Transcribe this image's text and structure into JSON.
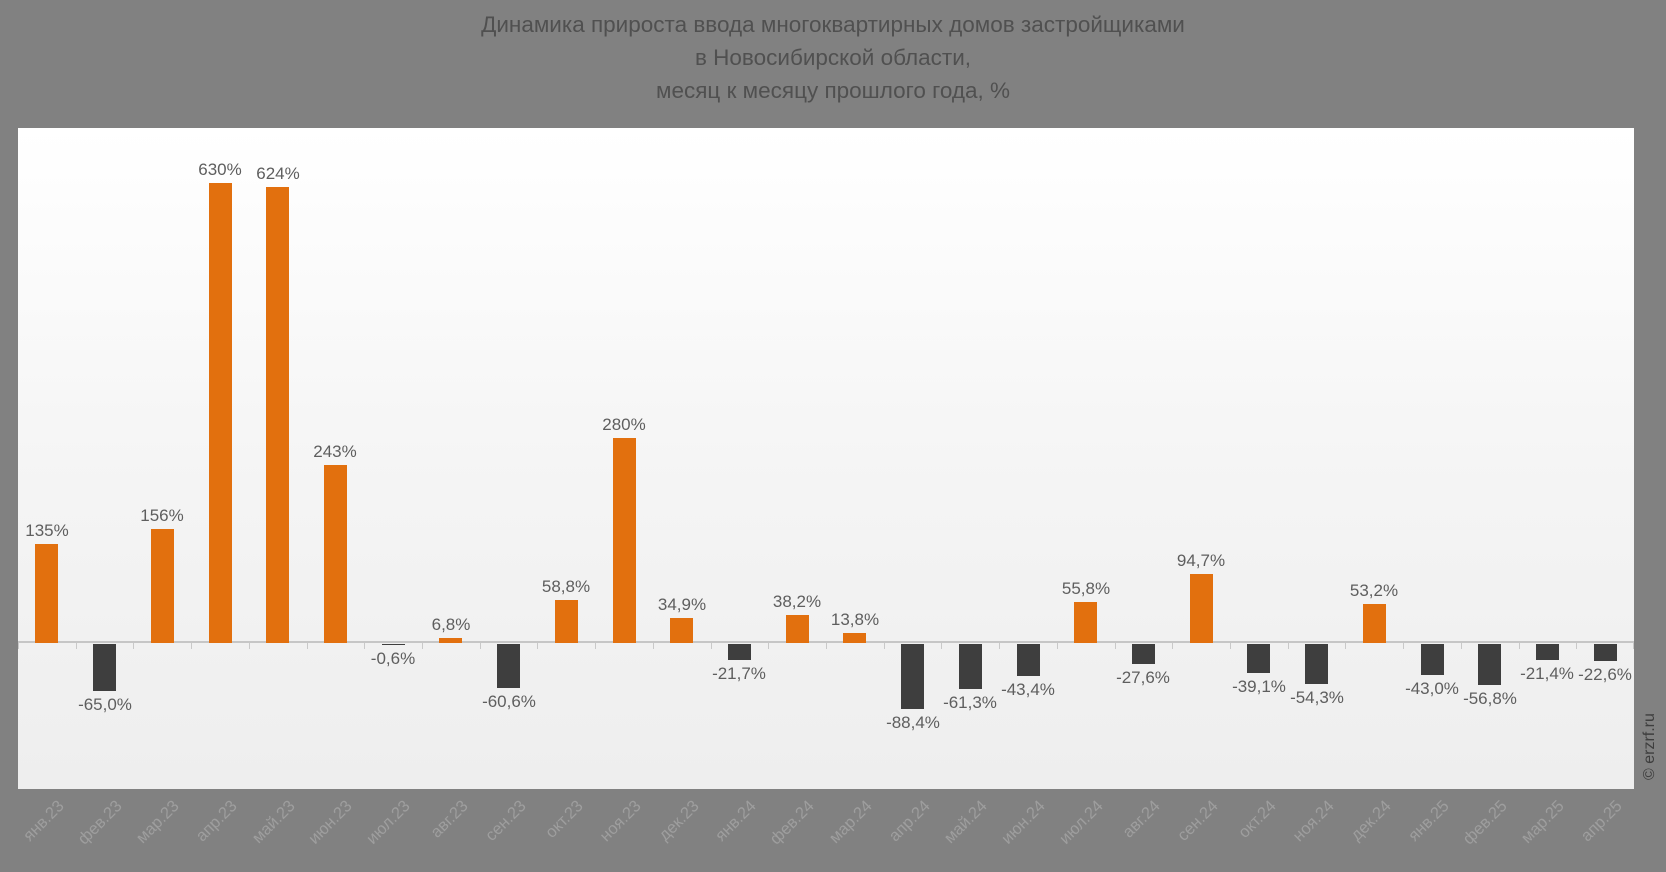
{
  "title": "Динамика прироста ввода многоквартирных домов застройщиками\nв Новосибирской области,\nмесяц к месяцу прошлого года, %",
  "watermark": "© erzrf.ru",
  "colors": {
    "positive_bar": "#e2700e",
    "negative_bar": "#3e3e3e",
    "background": "#818181",
    "plot_background_top": "#ffffff",
    "plot_background_bottom": "#eeeeee",
    "title_text": "#505050",
    "value_label_text": "#5e5e5e",
    "axis_label_text": "#9e9e9e",
    "axis_line": "#c6c6c6",
    "watermark_text": "#3e3e3e"
  },
  "chart_data": {
    "type": "bar",
    "title": "Динамика прироста ввода многоквартирных домов застройщиками в Новосибирской области, месяц к месяцу прошлого года, %",
    "xlabel": "",
    "ylabel": "%",
    "ylim": [
      -200,
      705
    ],
    "grid": false,
    "legend": false,
    "categories": [
      "янв.23",
      "фев.23",
      "мар.23",
      "апр.23",
      "май.23",
      "июн.23",
      "июл.23",
      "авг.23",
      "сен.23",
      "окт.23",
      "ноя.23",
      "дек.23",
      "янв.24",
      "фев.24",
      "мар.24",
      "апр.24",
      "май.24",
      "июн.24",
      "июл.24",
      "авг.24",
      "сен.24",
      "окт.24",
      "ноя.24",
      "дек.24",
      "янв.25",
      "фев.25",
      "мар.25",
      "апр.25"
    ],
    "values": [
      135,
      -65.0,
      156,
      630,
      624,
      243,
      -0.6,
      6.8,
      -60.6,
      58.8,
      280,
      34.9,
      -21.7,
      38.2,
      13.8,
      -88.4,
      -61.3,
      -43.4,
      55.8,
      -27.6,
      94.7,
      -39.1,
      -54.3,
      53.2,
      -43.0,
      -56.8,
      -21.4,
      -22.6
    ],
    "value_labels": [
      "135%",
      "-65,0%",
      "156%",
      "630%",
      "624%",
      "243%",
      "-0,6%",
      "6,8%",
      "-60,6%",
      "58,8%",
      "280%",
      "34,9%",
      "-21,7%",
      "38,2%",
      "13,8%",
      "-88,4%",
      "-61,3%",
      "-43,4%",
      "55,8%",
      "-27,6%",
      "94,7%",
      "-39,1%",
      "-54,3%",
      "53,2%",
      "-43,0%",
      "-56,8%",
      "-21,4%",
      "-22,6%"
    ]
  }
}
